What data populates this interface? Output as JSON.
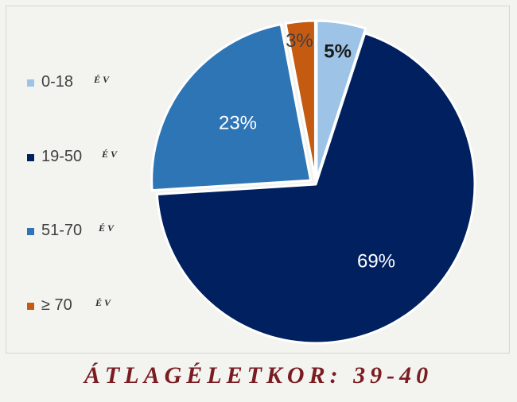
{
  "chart_data": {
    "type": "pie",
    "categories": [
      "0-18",
      "19-50",
      "51-70",
      "≥ 70"
    ],
    "values": [
      5,
      69,
      23,
      3
    ],
    "data_labels": [
      "5%",
      "69%",
      "23%",
      "3%"
    ],
    "unit_label": "ÉV",
    "colors": [
      "#9dc3e6",
      "#002060",
      "#2e75b6",
      "#c55a11"
    ],
    "label_colors": [
      "#1a1a1a",
      "#ffffff",
      "#ffffff",
      "#404040"
    ],
    "legend_position": "left"
  },
  "caption": "ÁTLAGÉLETKOR: 39-40",
  "colors": {
    "background": "#f3f4ef",
    "caption": "#7a1c22",
    "border": "#d6d6d2"
  }
}
